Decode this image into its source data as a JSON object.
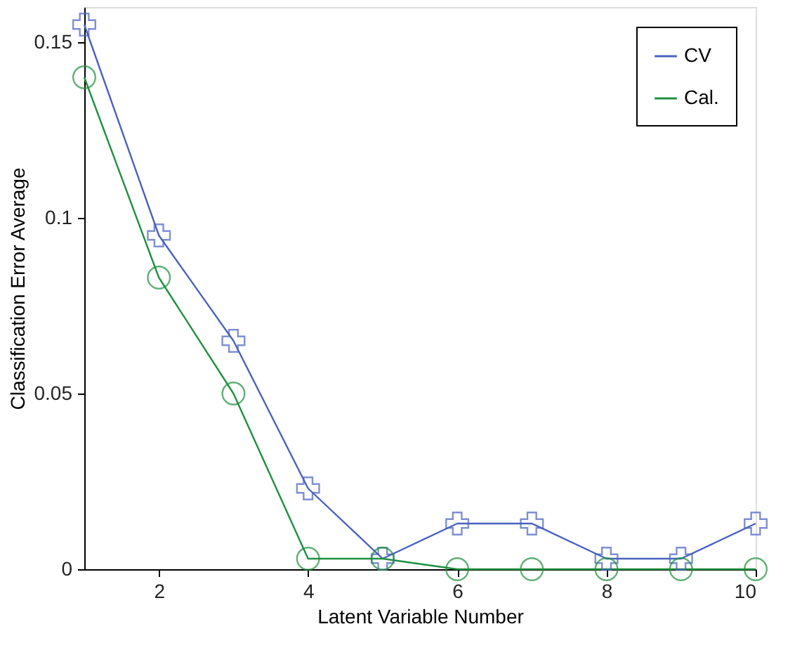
{
  "chart_data": {
    "type": "line",
    "xlabel": "Latent Variable Number",
    "ylabel": "Classification Error Average",
    "x": [
      1,
      2,
      3,
      4,
      5,
      6,
      7,
      8,
      9,
      10
    ],
    "xlim": [
      1,
      10
    ],
    "xticks": [
      2,
      4,
      6,
      8,
      10
    ],
    "ylim": [
      0,
      0.16
    ],
    "yticks": [
      0,
      0.05,
      0.1,
      0.15
    ],
    "series": [
      {
        "name": "CV",
        "color": "#4a62c0",
        "marker": "cross",
        "values": [
          0.155,
          0.095,
          0.065,
          0.023,
          0.003,
          0.013,
          0.013,
          0.003,
          0.003,
          0.013
        ]
      },
      {
        "name": "Cal.",
        "color": "#1f8f3f",
        "marker": "circle",
        "values": [
          0.14,
          0.083,
          0.05,
          0.003,
          0.003,
          0,
          0,
          0,
          0,
          0
        ]
      }
    ],
    "grid": false,
    "legend": "top right",
    "line_style": "solid"
  }
}
